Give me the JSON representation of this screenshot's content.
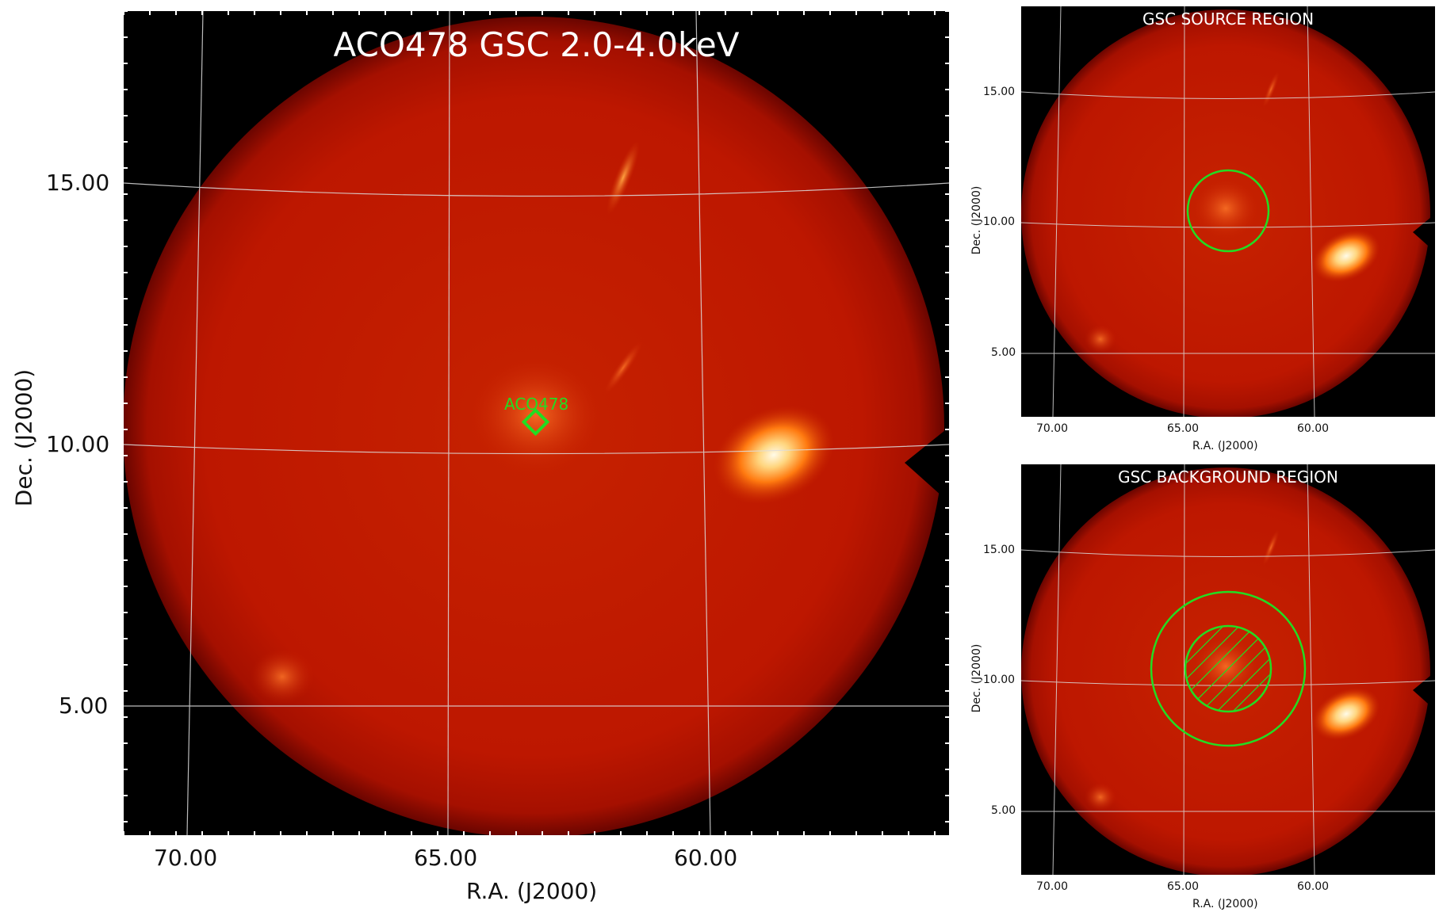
{
  "main": {
    "title": "ACO478 GSC 2.0-4.0keV",
    "marker_label": "ACO478",
    "xlabel": "R.A. (J2000)",
    "ylabel": "Dec. (J2000)",
    "xticks": [
      "70.00",
      "65.00",
      "60.00"
    ],
    "yticks": [
      "15.00",
      "10.00",
      "5.00"
    ]
  },
  "source_panel": {
    "title": "GSC SOURCE REGION",
    "xlabel": "R.A. (J2000)",
    "ylabel": "Dec. (J2000)",
    "xticks": [
      "70.00",
      "65.00",
      "60.00"
    ],
    "yticks": [
      "15.00",
      "10.00",
      "5.00"
    ]
  },
  "background_panel": {
    "title": "GSC BACKGROUND REGION",
    "xlabel": "R.A. (J2000)",
    "ylabel": "Dec. (J2000)",
    "xticks": [
      "70.00",
      "65.00",
      "60.00"
    ],
    "yticks": [
      "15.00",
      "10.00",
      "5.00"
    ]
  },
  "colors": {
    "region": "#22dd22",
    "disk": "#c41a00",
    "grid": "#dddddd"
  }
}
